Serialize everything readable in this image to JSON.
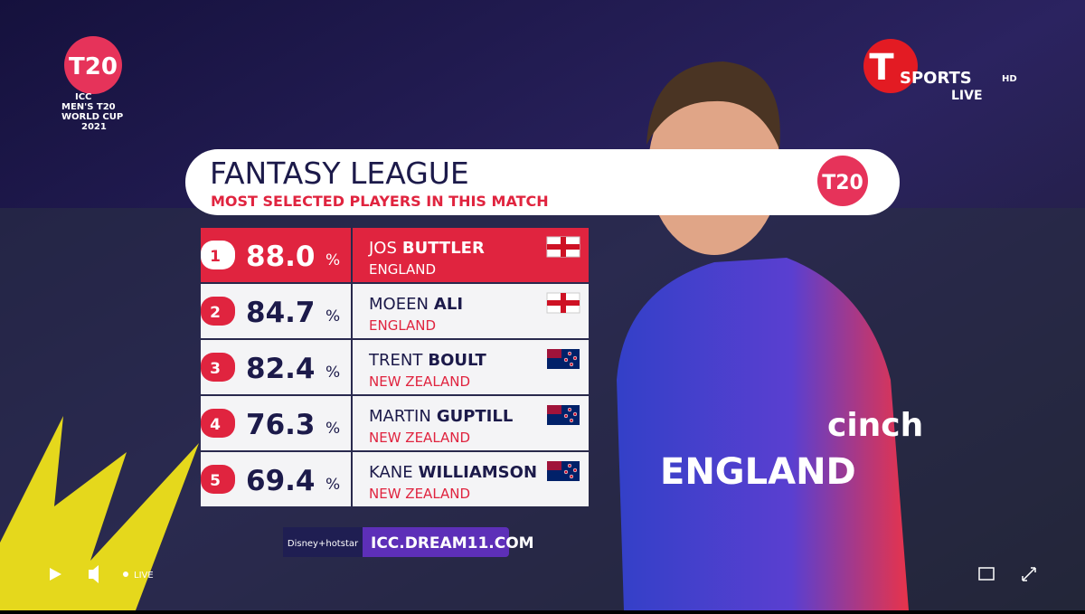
{
  "logo": {
    "line1": "ICC",
    "line2": "MEN'S T20",
    "line3": "WORLD CUP",
    "line4": "2021",
    "mark": "T20"
  },
  "channel": {
    "letter": "T",
    "name": "SPORTS",
    "quality": "HD",
    "status": "LIVE"
  },
  "header": {
    "title": "FANTASY LEAGUE",
    "subtitle": "MOST SELECTED PLAYERS IN THIS MATCH",
    "badge": "T20"
  },
  "table": {
    "unit": "%",
    "rows": [
      {
        "rank": "1",
        "percent": "88.0",
        "first": "JOS",
        "last": "BUTTLER",
        "country": "ENGLAND",
        "flag": "eng"
      },
      {
        "rank": "2",
        "percent": "84.7",
        "first": "MOEEN",
        "last": "ALI",
        "country": "ENGLAND",
        "flag": "eng"
      },
      {
        "rank": "3",
        "percent": "82.4",
        "first": "TRENT",
        "last": "BOULT",
        "country": "NEW ZEALAND",
        "flag": "nz"
      },
      {
        "rank": "4",
        "percent": "76.3",
        "first": "MARTIN",
        "last": "GUPTILL",
        "country": "NEW ZEALAND",
        "flag": "nz"
      },
      {
        "rank": "5",
        "percent": "69.4",
        "first": "KANE",
        "last": "WILLIAMSON",
        "country": "NEW ZEALAND",
        "flag": "nz"
      }
    ]
  },
  "footer": {
    "partner": "Disney+hotstar",
    "url": "ICC.DREAM11.COM"
  },
  "jersey": {
    "sponsor": "cinch",
    "text": "ENGLAND"
  },
  "player_controls": {
    "status": "LIVE"
  }
}
